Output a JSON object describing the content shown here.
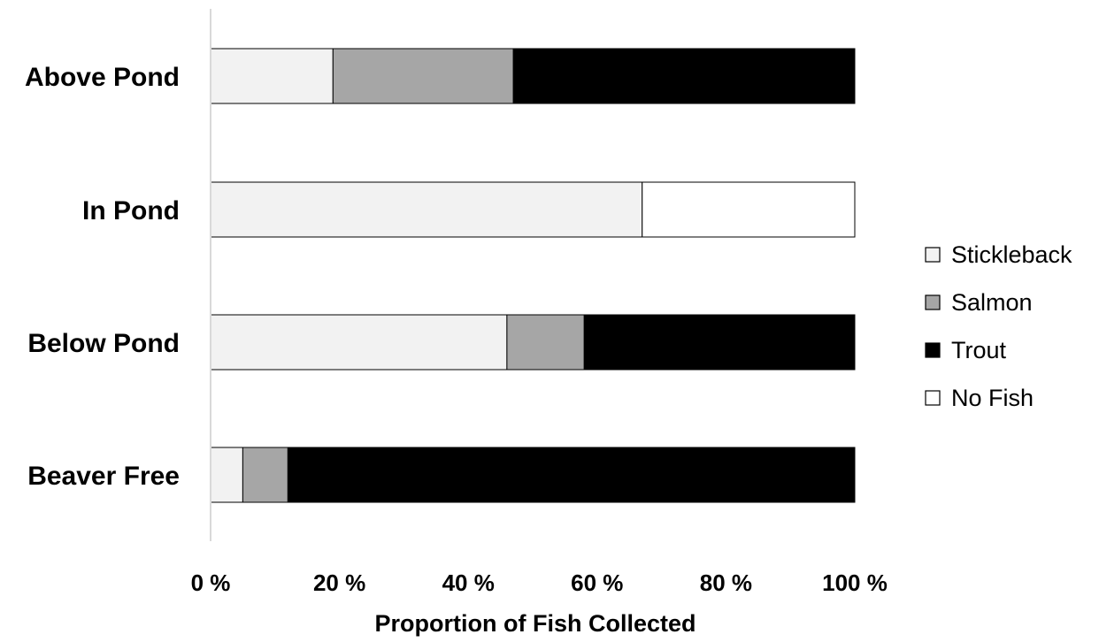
{
  "chart_data": {
    "type": "bar",
    "orientation": "horizontal",
    "stacked": "percent",
    "title": "",
    "xlabel": "Proportion of Fish Collected",
    "ylabel": "",
    "xlim": [
      0,
      100
    ],
    "x_ticks": [
      "0 %",
      "20 %",
      "40 %",
      "60 %",
      "80 %",
      "100 %"
    ],
    "categories": [
      "Above Pond",
      "In Pond",
      "Below Pond",
      "Beaver Free"
    ],
    "series": [
      {
        "name": "Stickleback",
        "color": "#f2f2f2",
        "values": [
          19,
          67,
          46,
          5
        ]
      },
      {
        "name": "Salmon",
        "color": "#a6a6a6",
        "values": [
          28,
          0,
          12,
          7
        ]
      },
      {
        "name": "Trout",
        "color": "#000000",
        "values": [
          53,
          0,
          42,
          88
        ]
      },
      {
        "name": "No Fish",
        "color": "#ffffff",
        "values": [
          0,
          33,
          0,
          0
        ]
      }
    ],
    "legend_position": "right",
    "grid": false
  }
}
